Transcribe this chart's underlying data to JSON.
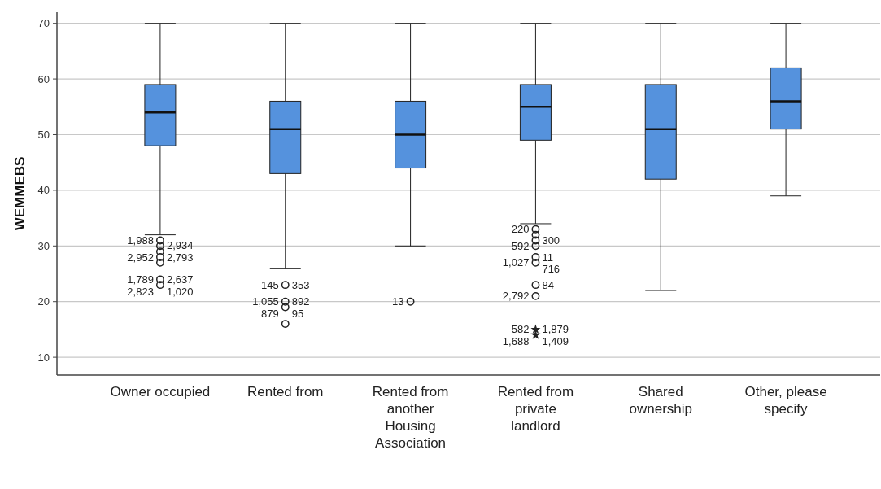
{
  "chart_data": {
    "type": "box",
    "ylabel": "WEMMEBS",
    "categories": [
      "Owner occupied",
      "Rented from",
      "Rented from another Housing Association",
      "Rented from private landlord",
      "Shared ownership",
      "Other, please specify"
    ],
    "boxes": [
      {
        "low": 32,
        "q1": 48,
        "median": 54,
        "q3": 59,
        "high": 70
      },
      {
        "low": 26,
        "q1": 43,
        "median": 51,
        "q3": 56,
        "high": 70
      },
      {
        "low": 30,
        "q1": 44,
        "median": 50,
        "q3": 56,
        "high": 70
      },
      {
        "low": 34,
        "q1": 49,
        "median": 55,
        "q3": 59,
        "high": 70
      },
      {
        "low": 22,
        "q1": 42,
        "median": 51,
        "q3": 59,
        "high": 70
      },
      {
        "low": 39,
        "q1": 51,
        "median": 56,
        "q3": 62,
        "high": 70
      }
    ],
    "series": [
      {
        "type": "scatter",
        "marker": "circle",
        "color": "#222222",
        "x": [
          "Owner occupied",
          "Owner occupied",
          "Owner occupied",
          "Owner occupied",
          "Owner occupied",
          "Owner occupied",
          "Owner occupied",
          "Rented from",
          "Rented from",
          "Rented from",
          "Rented from",
          "Rented from another Housing Association",
          "Rented from private landlord",
          "Rented from private landlord",
          "Rented from private landlord",
          "Rented from private landlord",
          "Rented from private landlord",
          "Rented from private landlord",
          "Rented from private landlord",
          "Rented from private landlord"
        ],
        "values": [
          31,
          30,
          29,
          28,
          27,
          24,
          23,
          23,
          20,
          19,
          16,
          20,
          33,
          32,
          31,
          30,
          28,
          27,
          23,
          21
        ]
      },
      {
        "type": "scatter",
        "marker": "star",
        "color": "#222222",
        "x": [
          "Rented from private landlord",
          "Rented from private landlord"
        ],
        "values": [
          15,
          14
        ]
      }
    ],
    "color": "#5592dd",
    "ylim": [
      6.8,
      72
    ],
    "yticks": [
      10,
      20,
      30,
      40,
      50,
      60,
      70
    ],
    "grid": "y",
    "annotations": [
      {
        "text": "1,988",
        "x": "Owner occupied",
        "y": 31
      },
      {
        "text": "2,793",
        "x": "Owner occupied",
        "y": 28
      },
      {
        "text": "2,952",
        "x": "Owner occupied",
        "y": 28
      },
      {
        "text": "2,934",
        "x": "Owner occupied",
        "y": 29
      },
      {
        "text": "1,789",
        "x": "Owner occupied",
        "y": 24
      },
      {
        "text": "2,637",
        "x": "Owner occupied",
        "y": 24
      },
      {
        "text": "2,823",
        "x": "Owner occupied",
        "y": 23
      },
      {
        "text": "1,020",
        "x": "Owner occupied",
        "y": 23
      },
      {
        "text": "145",
        "x": "Rented from",
        "y": 23
      },
      {
        "text": "353",
        "x": "Rented from",
        "y": 23
      },
      {
        "text": "1,055",
        "x": "Rented from",
        "y": 20
      },
      {
        "text": "892",
        "x": "Rented from",
        "y": 20
      },
      {
        "text": "879",
        "x": "Rented from",
        "y": 19
      },
      {
        "text": "95",
        "x": "Rented from",
        "y": 19
      },
      {
        "text": "13",
        "x": "Rented from another Housing Association",
        "y": 20
      },
      {
        "text": "220",
        "x": "Rented from private landlord",
        "y": 33
      },
      {
        "text": "300",
        "x": "Rented from private landlord",
        "y": 31
      },
      {
        "text": "592",
        "x": "Rented from private landlord",
        "y": 30
      },
      {
        "text": "11",
        "x": "Rented from private landlord",
        "y": 28
      },
      {
        "text": "1,027",
        "x": "Rented from private landlord",
        "y": 27
      },
      {
        "text": "716",
        "x": "Rented from private landlord",
        "y": 27
      },
      {
        "text": "2,792",
        "x": "Rented from private landlord",
        "y": 21
      },
      {
        "text": "84",
        "x": "Rented from private landlord",
        "y": 23
      },
      {
        "text": "582",
        "x": "Rented from private landlord",
        "y": 15
      },
      {
        "text": "1,879",
        "x": "Rented from private landlord",
        "y": 15
      },
      {
        "text": "1,688",
        "x": "Rented from private landlord",
        "y": 14
      },
      {
        "text": "1,409",
        "x": "Rented from private landlord",
        "y": 14
      }
    ]
  }
}
